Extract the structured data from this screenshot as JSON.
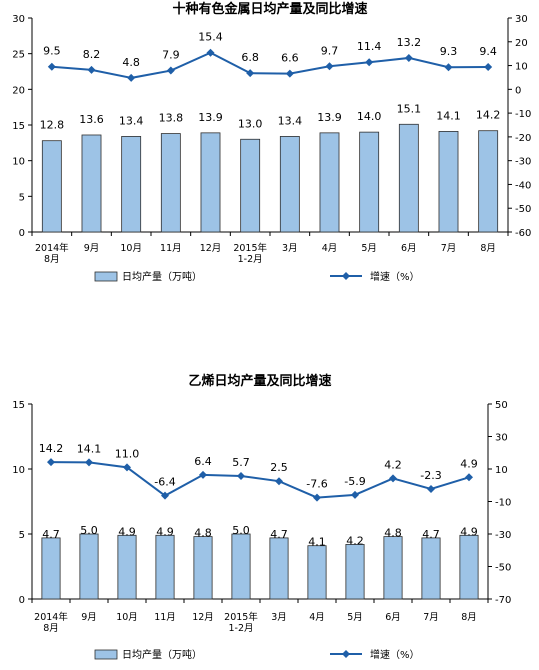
{
  "chart_data": [
    {
      "type": "bar",
      "title": "十种有色金属日均产量及同比增速",
      "categories": [
        [
          "2014年",
          "8月"
        ],
        [
          "9月"
        ],
        [
          "10月"
        ],
        [
          "11月"
        ],
        [
          "12月"
        ],
        [
          "2015年",
          "1-2月"
        ],
        [
          "3月"
        ],
        [
          "4月"
        ],
        [
          "5月"
        ],
        [
          "6月"
        ],
        [
          "7月"
        ],
        [
          "8月"
        ]
      ],
      "series": [
        {
          "name": "日均产量（万吨）",
          "type": "bar",
          "axis": "left",
          "values": [
            12.8,
            13.6,
            13.4,
            13.8,
            13.9,
            13.0,
            13.4,
            13.9,
            14.0,
            15.1,
            14.1,
            14.2
          ]
        },
        {
          "name": "增速（%）",
          "type": "line",
          "axis": "right",
          "values": [
            9.5,
            8.2,
            4.8,
            7.9,
            15.4,
            6.8,
            6.6,
            9.7,
            11.4,
            13.2,
            9.3,
            9.4
          ]
        }
      ],
      "ylim_left": [
        0,
        30
      ],
      "yticks_left": [
        0,
        5,
        10,
        15,
        20,
        25,
        30
      ],
      "ylim_right": [
        -60,
        30
      ],
      "yticks_right": [
        -60,
        -50,
        -40,
        -30,
        -20,
        -10,
        0,
        10,
        20,
        30
      ],
      "grid": false,
      "legend": "bottom"
    },
    {
      "type": "bar",
      "title": "乙烯日均产量及同比增速",
      "categories": [
        [
          "2014年",
          "8月"
        ],
        [
          "9月"
        ],
        [
          "10月"
        ],
        [
          "11月"
        ],
        [
          "12月"
        ],
        [
          "2015年",
          "1-2月"
        ],
        [
          "3月"
        ],
        [
          "4月"
        ],
        [
          "5月"
        ],
        [
          "6月"
        ],
        [
          "7月"
        ],
        [
          "8月"
        ]
      ],
      "series": [
        {
          "name": "日均产量（万吨）",
          "type": "bar",
          "axis": "left",
          "values": [
            4.7,
            5.0,
            4.9,
            4.9,
            4.8,
            5.0,
            4.7,
            4.1,
            4.2,
            4.8,
            4.7,
            4.9
          ]
        },
        {
          "name": "增速（%）",
          "type": "line",
          "axis": "right",
          "values": [
            14.2,
            14.1,
            11.0,
            -6.4,
            6.4,
            5.7,
            2.5,
            -7.6,
            -5.9,
            4.2,
            -2.3,
            4.9
          ]
        }
      ],
      "ylim_left": [
        0,
        15
      ],
      "yticks_left": [
        0,
        5,
        10,
        15
      ],
      "ylim_right": [
        -70,
        50
      ],
      "yticks_right": [
        -70,
        -50,
        -30,
        -10,
        10,
        30,
        50
      ],
      "grid": false,
      "legend": "bottom"
    }
  ],
  "colors": {
    "bar": "#9dc3e6",
    "line": "#1f5fa8"
  }
}
